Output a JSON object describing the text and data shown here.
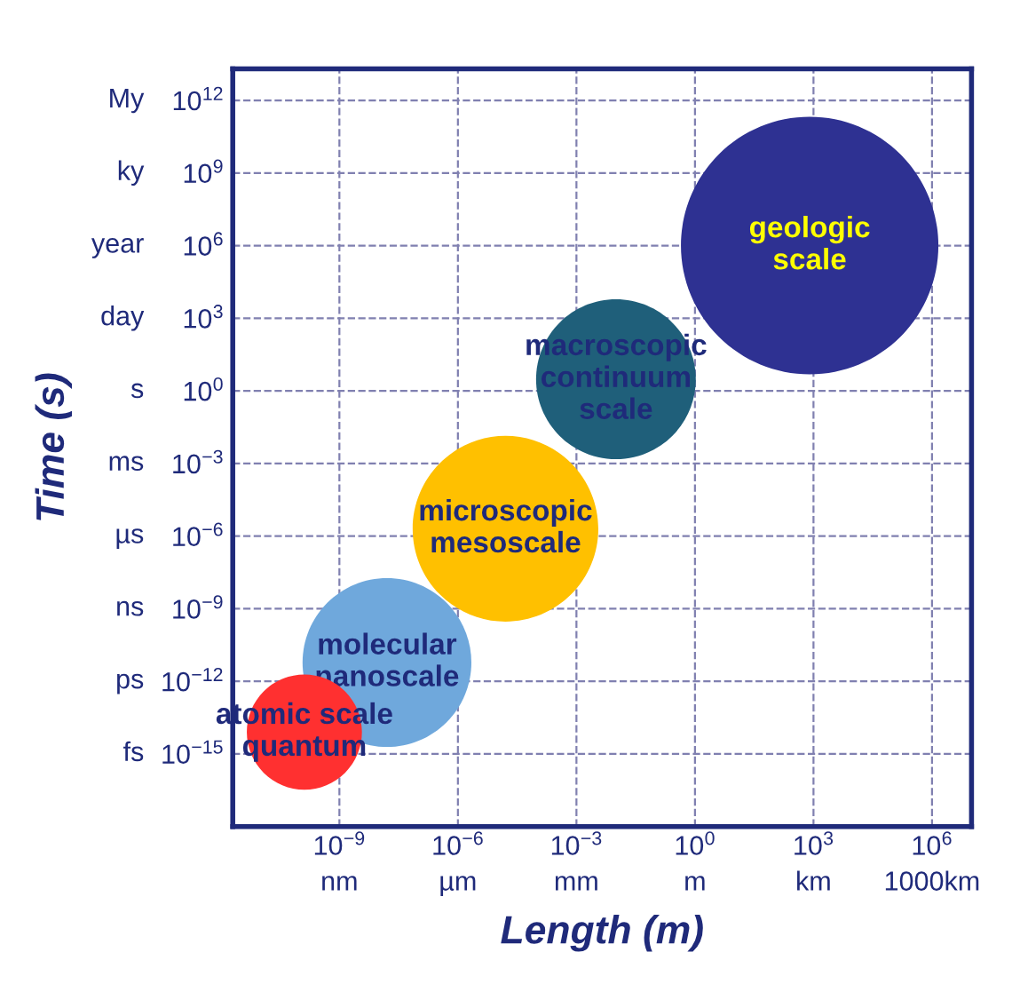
{
  "chart_data": {
    "type": "bubble",
    "xlabel": "Length (m)",
    "ylabel": "Time (s)",
    "log": "xy",
    "grid": true,
    "line_style": "dashed",
    "xlim": [
      2e-12,
      10000000.0
    ],
    "ylim": [
      1e-18,
      20000000000000.0
    ],
    "xticks": [
      {
        "value": 1e-09,
        "label": "10$^{−9}$"
      },
      {
        "value": 1e-06,
        "label": "10$^{−6}$"
      },
      {
        "value": 0.001,
        "label": "10$^{−3}$"
      },
      {
        "value": 1,
        "label": "10$^{0}$"
      },
      {
        "value": 1000,
        "label": "10$^{3}$"
      },
      {
        "value": 1000000,
        "label": "10$^{6}$"
      }
    ],
    "yticks": [
      {
        "value": 1e-15,
        "label": "10$^{−15}$"
      },
      {
        "value": 1e-12,
        "label": "10$^{−12}$"
      },
      {
        "value": 1e-09,
        "label": "10$^{−9}$"
      },
      {
        "value": 1e-06,
        "label": "10$^{−6}$"
      },
      {
        "value": 0.001,
        "label": "10$^{−3}$"
      },
      {
        "value": 1,
        "label": "10$^{0}$"
      },
      {
        "value": 1000,
        "label": "10$^{3}$"
      },
      {
        "value": 1000000,
        "label": "10$^{6}$"
      },
      {
        "value": 1000000000,
        "label": "10$^{9}$"
      },
      {
        "value": 1000000000000,
        "label": "10$^{12}$"
      }
    ],
    "annotations": [
      "nm",
      "µm",
      "mm",
      "m",
      "km",
      "1000km",
      "fs",
      "ps",
      "ns",
      "µs",
      "ms",
      "s",
      "day",
      "year",
      "ky",
      "My"
    ],
    "series": [
      {
        "name": "macroscopic\ncontinuum\nscale",
        "color": "#1f5f7a",
        "x": [
          0.01
        ],
        "values": [
          3
        ],
        "sizes": [
          0.385
        ]
      },
      {
        "name": "geologic\nscale",
        "color": "#2e3192",
        "x": [
          800
        ],
        "values": [
          1000000
        ],
        "sizes": [
          1
        ]
      },
      {
        "name": "molecular\nnanoscale",
        "color": "#6fa8dc",
        "x": [
          1.6e-08
        ],
        "values": [
          6e-12
        ],
        "sizes": [
          0.43
        ]
      },
      {
        "name": "microscopic\nmesoscale",
        "color": "#ffc000",
        "x": [
          1.6e-05
        ],
        "values": [
          2e-06
        ],
        "sizes": [
          0.52
        ]
      },
      {
        "name": "atomic scale\nquantum",
        "color": "#ff3030",
        "x": [
          1.3e-10
        ],
        "values": [
          8e-15
        ],
        "sizes": [
          0.2
        ]
      }
    ]
  }
}
